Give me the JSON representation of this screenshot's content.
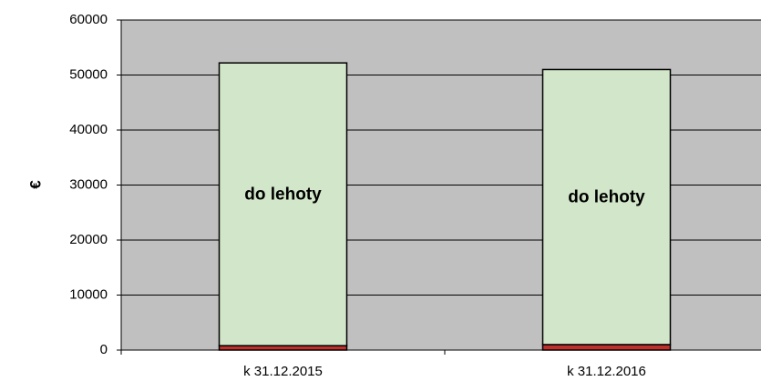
{
  "chart_data": {
    "type": "stacked_bar",
    "y_label": "€",
    "categories": [
      "k 31.12.2015",
      "k 31.12.2016"
    ],
    "series": [
      {
        "color": "#c0302a",
        "values": [
          800,
          1000
        ]
      },
      {
        "name": "do lehoty",
        "color": "#d2e6c9",
        "values": [
          51400,
          50000
        ]
      }
    ],
    "ylim": [
      0,
      60000
    ],
    "yticks": [
      0,
      10000,
      20000,
      30000,
      40000,
      50000,
      60000
    ],
    "grid": true
  }
}
